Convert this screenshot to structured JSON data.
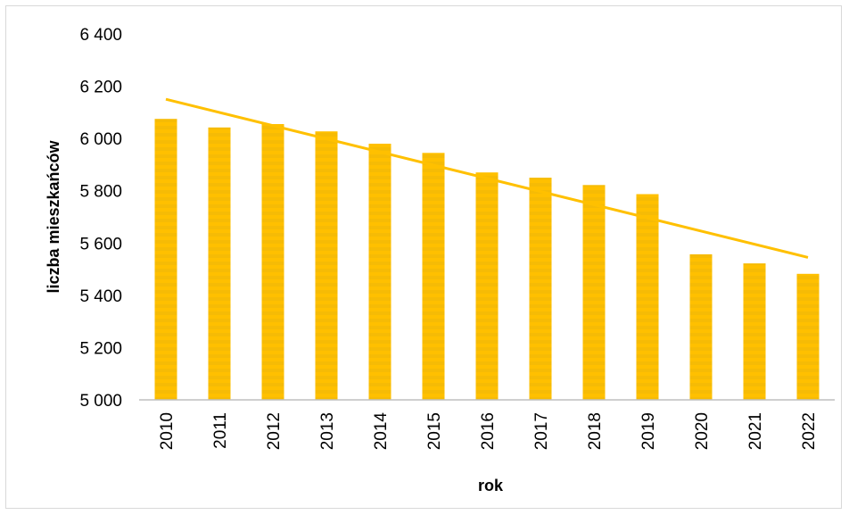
{
  "chart_data": {
    "type": "bar",
    "categories": [
      "2010",
      "2011",
      "2012",
      "2013",
      "2014",
      "2015",
      "2016",
      "2017",
      "2018",
      "2019",
      "2020",
      "2021",
      "2022"
    ],
    "values": [
      6075,
      6042,
      6055,
      6027,
      5980,
      5945,
      5870,
      5850,
      5822,
      5787,
      5557,
      5522,
      5482
    ],
    "trendline": {
      "type": "linear",
      "start": 6150,
      "end": 5545
    },
    "xlabel": "rok",
    "ylabel": "liczba mieszkańców",
    "ylim": [
      5000,
      6400
    ],
    "yticks": [
      5000,
      5200,
      5400,
      5600,
      5800,
      6000,
      6200,
      6400
    ],
    "ytick_labels": [
      "5 000",
      "5 200",
      "5 400",
      "5 600",
      "5 800",
      "6 000",
      "6 200",
      "6 400"
    ],
    "grid": false,
    "legend": "none",
    "colors": {
      "bar": "#FFC000",
      "bar_stripe": "#F5B800",
      "trend": "#FFC000",
      "axis": "#bfbfbf"
    }
  }
}
